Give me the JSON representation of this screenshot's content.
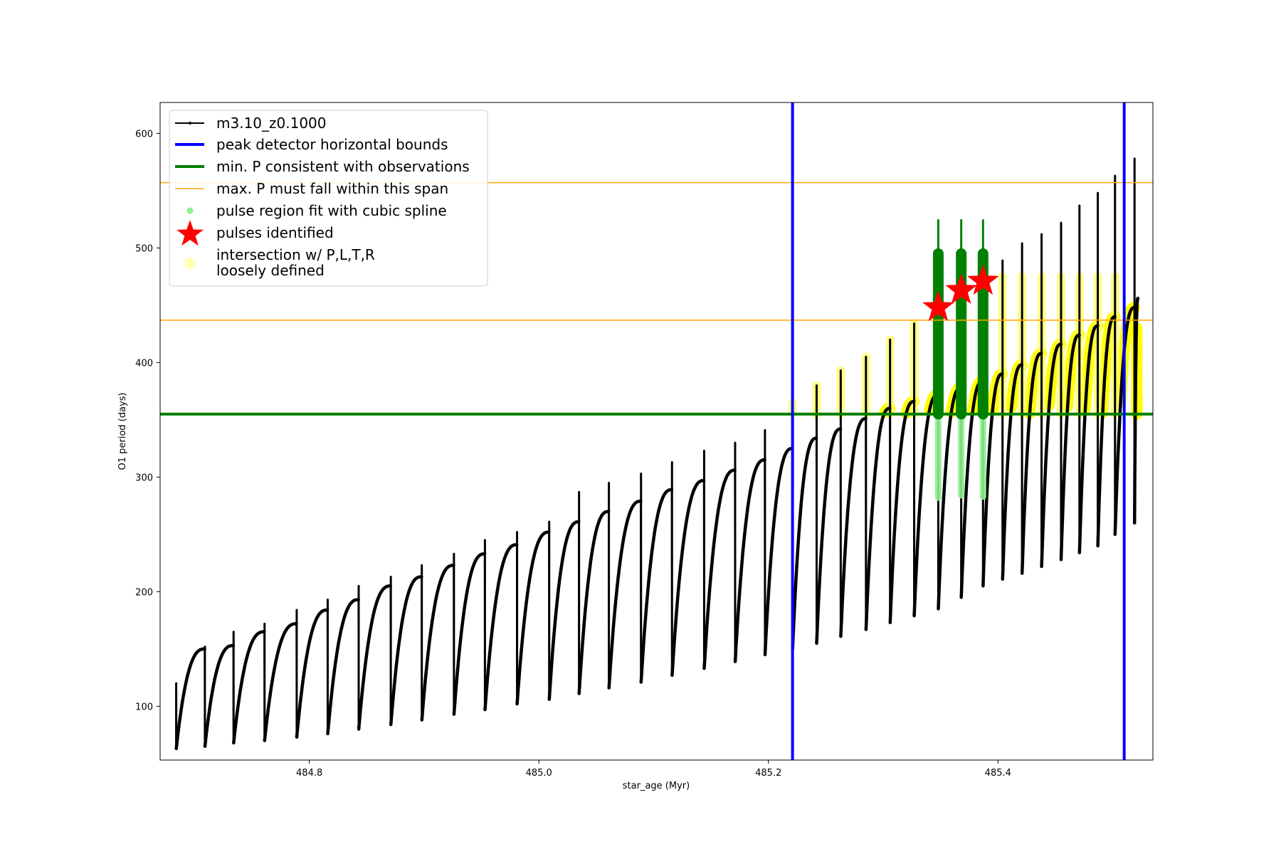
{
  "chart_data": {
    "type": "scatter",
    "xlabel": "star_age (Myr)",
    "ylabel": "O1 period (days)",
    "xlim": [
      484.67,
      485.535
    ],
    "ylim": [
      53,
      627
    ],
    "x_ticks": [
      484.8,
      485.0,
      485.2,
      485.4
    ],
    "x_tick_labels": [
      "484.8",
      "485.0",
      "485.2",
      "485.4"
    ],
    "y_ticks": [
      100,
      200,
      300,
      400,
      500,
      600
    ],
    "y_tick_labels": [
      "100",
      "200",
      "300",
      "400",
      "500",
      "600"
    ],
    "grid": false,
    "legend_placement": "upper-left",
    "pulses": [
      {
        "start": 484.684,
        "min": 63,
        "peak": 150,
        "spike": 120
      },
      {
        "start": 484.709,
        "min": 65,
        "peak": 153,
        "spike": 152
      },
      {
        "start": 484.734,
        "min": 68,
        "peak": 165,
        "spike": 165
      },
      {
        "start": 484.761,
        "min": 70,
        "peak": 172,
        "spike": 172
      },
      {
        "start": 484.789,
        "min": 73,
        "peak": 184,
        "spike": 184
      },
      {
        "start": 484.816,
        "min": 76,
        "peak": 193,
        "spike": 193
      },
      {
        "start": 484.843,
        "min": 80,
        "peak": 205,
        "spike": 205
      },
      {
        "start": 484.871,
        "min": 84,
        "peak": 213,
        "spike": 213
      },
      {
        "start": 484.898,
        "min": 88,
        "peak": 223,
        "spike": 223
      },
      {
        "start": 484.926,
        "min": 93,
        "peak": 233,
        "spike": 233
      },
      {
        "start": 484.953,
        "min": 97,
        "peak": 241,
        "spike": 245
      },
      {
        "start": 484.981,
        "min": 102,
        "peak": 252,
        "spike": 252
      },
      {
        "start": 485.009,
        "min": 106,
        "peak": 261,
        "spike": 261
      },
      {
        "start": 485.035,
        "min": 111,
        "peak": 270,
        "spike": 287
      },
      {
        "start": 485.061,
        "min": 116,
        "peak": 279,
        "spike": 295
      },
      {
        "start": 485.089,
        "min": 121,
        "peak": 289,
        "spike": 303
      },
      {
        "start": 485.116,
        "min": 127,
        "peak": 297,
        "spike": 313
      },
      {
        "start": 485.144,
        "min": 133,
        "peak": 306,
        "spike": 323
      },
      {
        "start": 485.171,
        "min": 139,
        "peak": 315,
        "spike": 330
      },
      {
        "start": 485.197,
        "min": 145,
        "peak": 325,
        "spike": 341
      },
      {
        "start": 485.221,
        "min": 150,
        "peak": 334,
        "spike": 365
      },
      {
        "start": 485.242,
        "min": 155,
        "peak": 342,
        "spike": 380
      },
      {
        "start": 485.263,
        "min": 161,
        "peak": 351,
        "spike": 393
      },
      {
        "start": 485.285,
        "min": 167,
        "peak": 360,
        "spike": 405
      },
      {
        "start": 485.306,
        "min": 173,
        "peak": 366,
        "spike": 420
      },
      {
        "start": 485.327,
        "min": 179,
        "peak": 372,
        "spike": 434
      },
      {
        "start": 485.348,
        "min": 185,
        "peak": 378,
        "spike": 500
      },
      {
        "start": 485.368,
        "min": 195,
        "peak": 384,
        "spike": 500
      },
      {
        "start": 485.387,
        "min": 205,
        "peak": 390,
        "spike": 500
      },
      {
        "start": 485.404,
        "min": 211,
        "peak": 398,
        "spike": 489
      },
      {
        "start": 485.421,
        "min": 216,
        "peak": 408,
        "spike": 504
      },
      {
        "start": 485.438,
        "min": 222,
        "peak": 416,
        "spike": 512
      },
      {
        "start": 485.455,
        "min": 228,
        "peak": 424,
        "spike": 522
      },
      {
        "start": 485.471,
        "min": 234,
        "peak": 432,
        "spike": 537
      },
      {
        "start": 485.487,
        "min": 240,
        "peak": 440,
        "spike": 548
      },
      {
        "start": 485.502,
        "min": 250,
        "peak": 448,
        "spike": 563
      },
      {
        "start": 485.519,
        "min": 260,
        "peak": 456,
        "spike": 578
      }
    ],
    "blue_vlines": [
      485.221,
      485.51
    ],
    "green_hline": 355,
    "orange_hlines": [
      437,
      557
    ],
    "pulses_identified": [
      {
        "x": 485.348,
        "y": 448
      },
      {
        "x": 485.368,
        "y": 463
      },
      {
        "x": 485.387,
        "y": 471
      }
    ],
    "green_spline_regions": [
      {
        "x": 485.348,
        "y_low": 282,
        "y_high": 495,
        "y_tip": 525
      },
      {
        "x": 485.368,
        "y_low": 284,
        "y_high": 495,
        "y_tip": 525
      },
      {
        "x": 485.387,
        "y_low": 283,
        "y_high": 495,
        "y_tip": 525
      }
    ],
    "legend": [
      {
        "label": "m3.10_z0.1000",
        "kind": "line-marker",
        "color": "#000000"
      },
      {
        "label": "peak detector horizontal bounds",
        "kind": "line",
        "color": "#0000ff"
      },
      {
        "label": "min. P consistent with observations",
        "kind": "line",
        "color": "#008000"
      },
      {
        "label": "max. P must fall within this span",
        "kind": "thin-line",
        "color": "#ffa500"
      },
      {
        "label": "pulse region fit with cubic spline",
        "kind": "dot",
        "color": "#90ee90"
      },
      {
        "label": "pulses identified",
        "kind": "star",
        "color": "#ff0000"
      },
      {
        "label": "intersection w/ P,L,T,R",
        "label2": "loosely defined",
        "kind": "circle",
        "color": "#ffff99"
      }
    ],
    "colors": {
      "track": "#000000",
      "blue": "#0000ff",
      "green": "#008000",
      "orange": "#ffa500",
      "light_green": "#90ee90",
      "yellow": "#ffff00",
      "red": "#ff0000"
    }
  }
}
